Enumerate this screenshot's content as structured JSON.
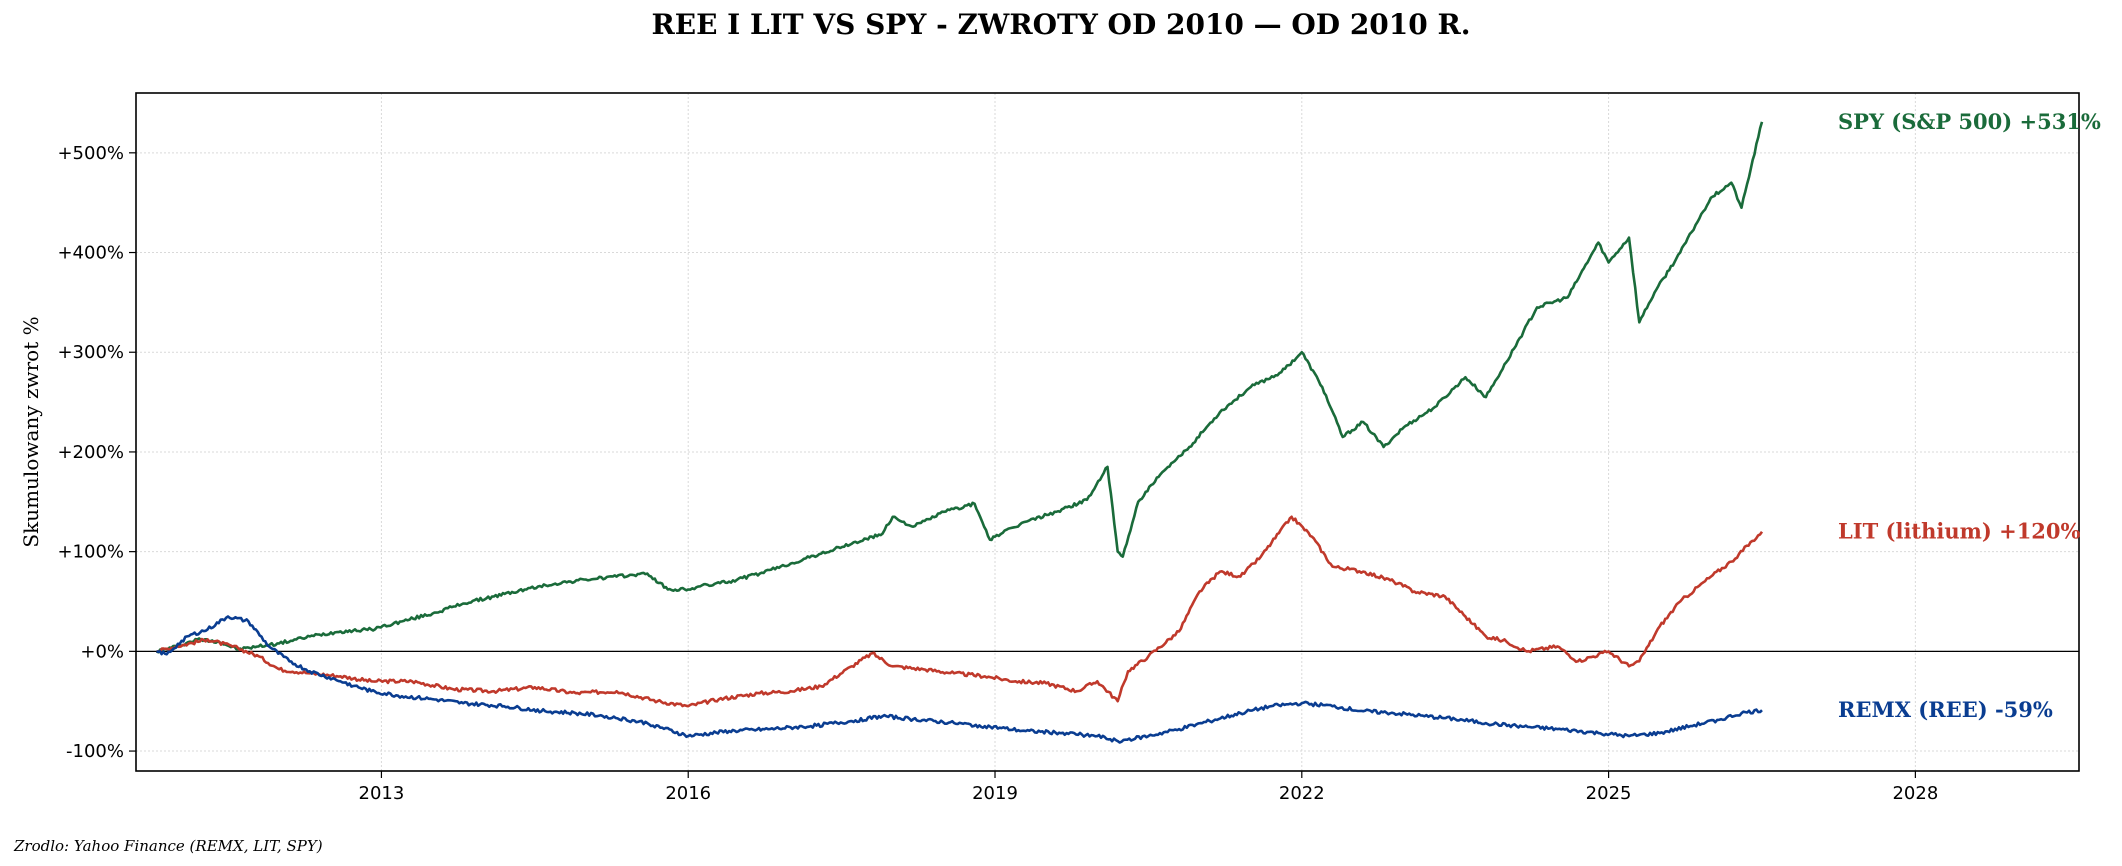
{
  "chart_data": {
    "type": "line",
    "title": "REE I LIT VS SPY - ZWROTY OD 2010 — OD 2010 R.",
    "ylabel": "Skumulowany zwrot %",
    "xlabel": "",
    "xlim": [
      2010.6,
      2029.6
    ],
    "ylim": [
      -120,
      560
    ],
    "x_ticks": [
      2013,
      2016,
      2019,
      2022,
      2025,
      2028
    ],
    "x_tick_labels": [
      "2013",
      "2016",
      "2019",
      "2022",
      "2025",
      "2028"
    ],
    "y_ticks": [
      -100,
      0,
      100,
      200,
      300,
      400,
      500
    ],
    "y_tick_labels": [
      "-100%",
      "+0%",
      "+100%",
      "+200%",
      "+300%",
      "+400%",
      "+500%"
    ],
    "grid": true,
    "zero_line": true,
    "series": [
      {
        "name": "SPY (S&P 500)",
        "end_label": "SPY (S&P 500)  +531%",
        "color": "#1a6b3a",
        "x": [
          2010.8,
          2011.0,
          2011.2,
          2011.4,
          2011.6,
          2011.8,
          2012.0,
          2012.3,
          2012.6,
          2012.9,
          2013.2,
          2013.5,
          2013.8,
          2014.1,
          2014.4,
          2014.7,
          2015.0,
          2015.3,
          2015.6,
          2015.8,
          2016.0,
          2016.1,
          2016.4,
          2016.7,
          2017.0,
          2017.3,
          2017.6,
          2017.9,
          2018.0,
          2018.2,
          2018.5,
          2018.8,
          2018.95,
          2019.0,
          2019.3,
          2019.6,
          2019.9,
          2020.1,
          2020.2,
          2020.25,
          2020.4,
          2020.6,
          2020.9,
          2021.2,
          2021.5,
          2021.8,
          2022.0,
          2022.2,
          2022.4,
          2022.6,
          2022.8,
          2023.0,
          2023.3,
          2023.6,
          2023.8,
          2024.0,
          2024.3,
          2024.6,
          2024.9,
          2025.0,
          2025.2,
          2025.3,
          2025.45,
          2025.7,
          2026.0,
          2026.2,
          2026.3,
          2026.5
        ],
        "values": [
          0,
          5,
          12,
          10,
          2,
          5,
          8,
          15,
          20,
          22,
          30,
          38,
          48,
          55,
          62,
          68,
          72,
          75,
          78,
          62,
          62,
          65,
          70,
          78,
          88,
          98,
          108,
          118,
          135,
          125,
          140,
          148,
          112,
          115,
          130,
          140,
          152,
          185,
          100,
          95,
          150,
          175,
          205,
          240,
          265,
          280,
          300,
          265,
          215,
          230,
          205,
          225,
          245,
          275,
          255,
          290,
          345,
          355,
          410,
          390,
          415,
          330,
          360,
          400,
          455,
          470,
          445,
          531
        ]
      },
      {
        "name": "LIT (lithium)",
        "end_label": "LIT (lithium)  +120%",
        "color": "#c0392b",
        "x": [
          2010.8,
          2011.0,
          2011.3,
          2011.6,
          2011.8,
          2012.0,
          2012.3,
          2012.6,
          2012.9,
          2013.3,
          2013.7,
          2014.1,
          2014.5,
          2014.9,
          2015.3,
          2015.7,
          2016.0,
          2016.3,
          2016.7,
          2017.0,
          2017.3,
          2017.6,
          2017.8,
          2018.0,
          2018.3,
          2018.6,
          2018.9,
          2019.2,
          2019.5,
          2019.8,
          2020.0,
          2020.2,
          2020.3,
          2020.5,
          2020.8,
          2021.0,
          2021.2,
          2021.4,
          2021.6,
          2021.9,
          2022.1,
          2022.3,
          2022.6,
          2022.9,
          2023.1,
          2023.4,
          2023.6,
          2023.8,
          2024.0,
          2024.2,
          2024.5,
          2024.7,
          2025.0,
          2025.2,
          2025.3,
          2025.5,
          2025.7,
          2026.0,
          2026.2,
          2026.5
        ],
        "values": [
          0,
          5,
          12,
          3,
          -5,
          -18,
          -22,
          -25,
          -30,
          -30,
          -38,
          -40,
          -36,
          -42,
          -40,
          -50,
          -55,
          -48,
          -42,
          -40,
          -35,
          -15,
          -2,
          -15,
          -18,
          -22,
          -25,
          -30,
          -32,
          -40,
          -30,
          -50,
          -20,
          -5,
          20,
          60,
          80,
          75,
          95,
          135,
          115,
          85,
          80,
          70,
          60,
          55,
          35,
          15,
          10,
          0,
          5,
          -10,
          0,
          -15,
          -10,
          25,
          50,
          75,
          90,
          120
        ]
      },
      {
        "name": "REMX (REE)",
        "end_label": "REMX (REE)  -59%",
        "color": "#0a3d91",
        "x": [
          2010.8,
          2010.9,
          2011.1,
          2011.3,
          2011.5,
          2011.7,
          2011.9,
          2012.1,
          2012.3,
          2012.6,
          2012.9,
          2013.2,
          2013.5,
          2013.8,
          2014.2,
          2014.6,
          2014.9,
          2015.2,
          2015.6,
          2016.0,
          2016.4,
          2016.8,
          2017.2,
          2017.6,
          2017.9,
          2018.2,
          2018.6,
          2018.9,
          2019.3,
          2019.7,
          2020.0,
          2020.2,
          2020.5,
          2020.8,
          2021.1,
          2021.4,
          2021.7,
          2022.0,
          2022.3,
          2022.6,
          2022.9,
          2023.2,
          2023.5,
          2023.8,
          2024.1,
          2024.5,
          2024.9,
          2025.2,
          2025.5,
          2025.8,
          2026.1,
          2026.3,
          2026.5
        ],
        "values": [
          0,
          -3,
          15,
          22,
          35,
          30,
          5,
          -10,
          -20,
          -30,
          -40,
          -45,
          -48,
          -52,
          -55,
          -60,
          -62,
          -65,
          -72,
          -85,
          -80,
          -78,
          -75,
          -70,
          -65,
          -68,
          -72,
          -75,
          -80,
          -82,
          -85,
          -90,
          -85,
          -78,
          -70,
          -62,
          -55,
          -52,
          -55,
          -60,
          -62,
          -65,
          -68,
          -72,
          -75,
          -78,
          -82,
          -85,
          -82,
          -75,
          -68,
          -62,
          -59
        ]
      }
    ],
    "source": "Zrodlo: Yahoo Finance (REMX, LIT, SPY)"
  }
}
